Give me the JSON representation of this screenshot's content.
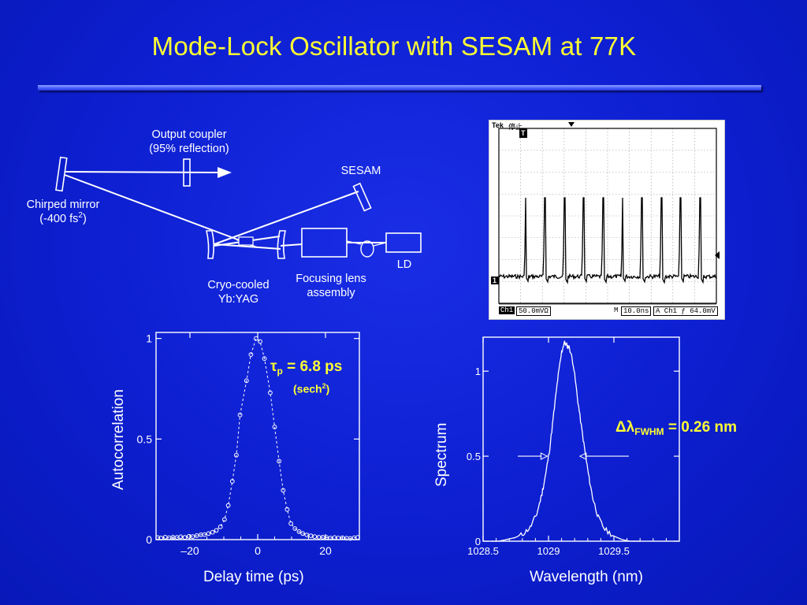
{
  "slide": {
    "title": "Mode-Lock Oscillator with SESAM at 77K"
  },
  "diagram": {
    "output_coupler_line1": "Output coupler",
    "output_coupler_line2": "(95% reflection)",
    "sesam": "SESAM",
    "chirped_mirror_line1": "Chirped mirror",
    "chirped_mirror_line2_pre": "(-400 fs",
    "chirped_mirror_line2_sup": "2",
    "chirped_mirror_line2_post": ")",
    "ld": "LD",
    "crystal_line1": "Cryo-cooled",
    "crystal_line2": "Yb:YAG",
    "lens_line1": "Focusing lens",
    "lens_line2": "assembly"
  },
  "oscilloscope": {
    "brand": "Tek",
    "state": "停止",
    "trigger_marker": "T",
    "channel_marker": "1",
    "ch_label": "Ch1",
    "volts_per_div": "50.0mVΩ",
    "m_label": "M",
    "time_per_div": "10.0ns",
    "trigger_text": "A  Ch1  ƒ  64.0mV",
    "pulse_count": 10,
    "pulse_period_ns": 10.0,
    "trace_color": "#000000"
  },
  "chart_data": [
    {
      "type": "scatter",
      "xlabel": "Delay time (ps)",
      "ylabel": "Autocorrelation",
      "xlim": [
        -30,
        30
      ],
      "ylim": [
        0,
        1.03
      ],
      "xticks": [
        -20,
        0,
        20
      ],
      "xtick_labels": [
        "–20",
        "0",
        "20"
      ],
      "yticks": [
        0,
        0.5,
        1
      ],
      "ytick_labels": [
        "0",
        "0.5",
        "1"
      ],
      "fit": "sech²",
      "points": [
        [
          -29.5,
          0.01
        ],
        [
          -28.5,
          0.008
        ],
        [
          -27.3,
          0.012
        ],
        [
          -26.2,
          0.009
        ],
        [
          -25.0,
          0.012
        ],
        [
          -23.8,
          0.011
        ],
        [
          -22.7,
          0.014
        ],
        [
          -21.5,
          0.011
        ],
        [
          -20.3,
          0.016
        ],
        [
          -19.2,
          0.015
        ],
        [
          -18.0,
          0.02
        ],
        [
          -16.8,
          0.024
        ],
        [
          -15.7,
          0.025
        ],
        [
          -14.5,
          0.03
        ],
        [
          -13.3,
          0.037
        ],
        [
          -12.2,
          0.046
        ],
        [
          -11.0,
          0.064
        ],
        [
          -9.8,
          0.1
        ],
        [
          -8.7,
          0.17
        ],
        [
          -7.5,
          0.29
        ],
        [
          -6.3,
          0.42
        ],
        [
          -5.2,
          0.62
        ],
        [
          -3.3,
          0.79
        ],
        [
          -2.0,
          0.92
        ],
        [
          -0.5,
          1.0
        ],
        [
          0.7,
          0.985
        ],
        [
          2.0,
          0.9
        ],
        [
          3.7,
          0.73
        ],
        [
          5.0,
          0.56
        ],
        [
          6.3,
          0.39
        ],
        [
          7.5,
          0.245
        ],
        [
          8.7,
          0.15
        ],
        [
          9.8,
          0.08
        ],
        [
          11.0,
          0.055
        ],
        [
          12.2,
          0.04
        ],
        [
          13.3,
          0.03
        ],
        [
          14.5,
          0.023
        ],
        [
          15.7,
          0.019
        ],
        [
          16.8,
          0.015
        ],
        [
          18.0,
          0.012
        ],
        [
          19.2,
          0.012
        ],
        [
          20.3,
          0.01
        ],
        [
          21.5,
          0.008
        ],
        [
          22.7,
          0.01
        ],
        [
          23.8,
          0.008
        ],
        [
          25.0,
          0.009
        ],
        [
          26.2,
          0.007
        ],
        [
          27.3,
          0.006
        ],
        [
          28.5,
          0.009
        ],
        [
          29.5,
          0.011
        ]
      ],
      "annotation": {
        "symbol": "τ",
        "sub": "p",
        "value": " = 6.8 ps",
        "shape_pre": "(sech",
        "shape_sup": "2",
        "shape_post": ")"
      }
    },
    {
      "type": "line",
      "xlabel": "Wavelength (nm)",
      "ylabel": "Spectrum",
      "xlim": [
        1028.5,
        1030.0
      ],
      "ylim": [
        0,
        1.2
      ],
      "xticks": [
        1028.5,
        1029,
        1029.5
      ],
      "xtick_labels": [
        "1028.5",
        "1029",
        "1029.5"
      ],
      "yticks": [
        0,
        0.5,
        1
      ],
      "ytick_labels": [
        "0",
        "0.5",
        "1"
      ],
      "series": [
        {
          "points": [
            [
              1028.56,
              0.0
            ],
            [
              1028.62,
              0.0
            ],
            [
              1028.68,
              0.01
            ],
            [
              1028.74,
              0.02
            ],
            [
              1028.8,
              0.04
            ],
            [
              1028.86,
              0.08
            ],
            [
              1028.91,
              0.16
            ],
            [
              1028.95,
              0.28
            ],
            [
              1028.98,
              0.4
            ],
            [
              1029.01,
              0.55
            ],
            [
              1029.04,
              0.75
            ],
            [
              1029.07,
              0.95
            ],
            [
              1029.1,
              1.11
            ],
            [
              1029.12,
              1.17
            ],
            [
              1029.14,
              1.15
            ],
            [
              1029.16,
              1.14
            ],
            [
              1029.19,
              1.04
            ],
            [
              1029.22,
              0.85
            ],
            [
              1029.25,
              0.68
            ],
            [
              1029.28,
              0.52
            ],
            [
              1029.31,
              0.37
            ],
            [
              1029.34,
              0.25
            ],
            [
              1029.38,
              0.14
            ],
            [
              1029.43,
              0.07
            ],
            [
              1029.5,
              0.03
            ],
            [
              1029.56,
              0.01
            ],
            [
              1029.62,
              0.0
            ],
            [
              1029.7,
              0.0
            ]
          ]
        }
      ],
      "fwhm_arrow_y": 0.5,
      "fwhm_left_nm": 1028.99,
      "fwhm_right_nm": 1029.24,
      "annotation": {
        "symbol": "Δλ",
        "sub": "FWHM",
        "value": " = 0.26 nm"
      }
    }
  ]
}
